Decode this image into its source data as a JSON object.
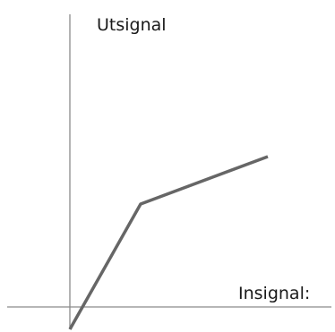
{
  "diagram": {
    "y_axis_label": "Utsignal",
    "x_axis_label": "Insignal:",
    "colors": {
      "axis": "#8a8a8a",
      "curve": "#666666",
      "text": "#1a1a1a",
      "background": "#ffffff"
    }
  }
}
